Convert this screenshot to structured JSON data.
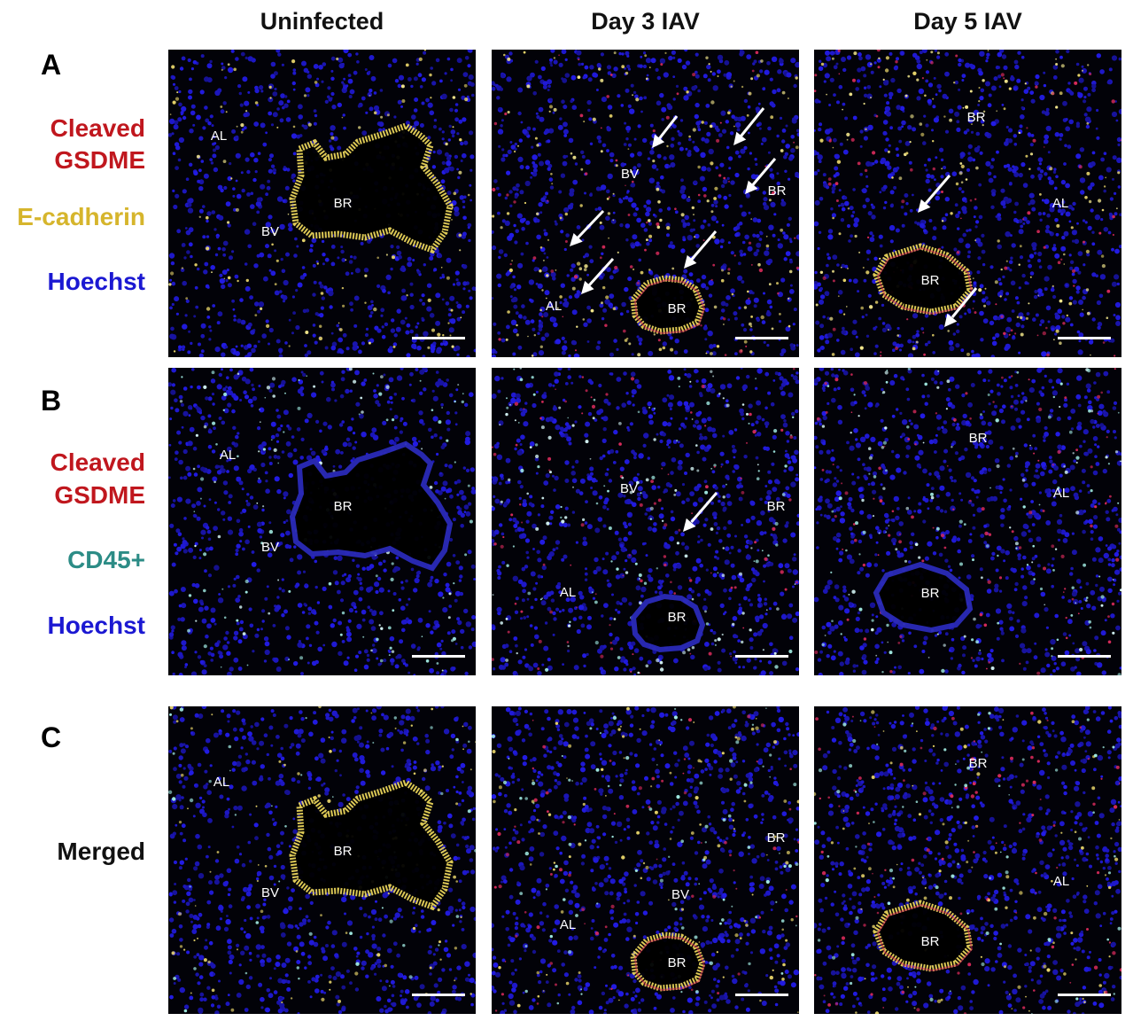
{
  "columns": [
    "Uninfected",
    "Day 3 IAV",
    "Day 5 IAV"
  ],
  "panels": [
    {
      "letter": "A",
      "stains": [
        {
          "text": "Cleaved",
          "color": "#c0171e"
        },
        {
          "text": "GSDME",
          "color": "#c0171e"
        },
        {
          "text": "E-cadherin",
          "color": "#d6b52c"
        },
        {
          "text": "Hoechst",
          "color": "#1b18d2"
        }
      ],
      "images": [
        {
          "labels": [
            "AL",
            "BR",
            "BV"
          ]
        },
        {
          "labels": [
            "BV",
            "BR",
            "AL",
            "BR"
          ]
        },
        {
          "labels": [
            "BR",
            "AL",
            "BR"
          ]
        }
      ]
    },
    {
      "letter": "B",
      "stains": [
        {
          "text": "Cleaved",
          "color": "#c0171e"
        },
        {
          "text": "GSDME",
          "color": "#c0171e"
        },
        {
          "text": "CD45+",
          "color": "#2c8c86"
        },
        {
          "text": "Hoechst",
          "color": "#1b18d2"
        }
      ],
      "images": [
        {
          "labels": [
            "AL",
            "BR",
            "BV"
          ]
        },
        {
          "labels": [
            "BV",
            "BR",
            "AL",
            "BR"
          ]
        },
        {
          "labels": [
            "BR",
            "AL",
            "BR"
          ]
        }
      ]
    },
    {
      "letter": "C",
      "stains": [
        {
          "text": "Merged",
          "color": "#111111"
        }
      ],
      "images": [
        {
          "labels": [
            "AL",
            "BR",
            "BV"
          ]
        },
        {
          "labels": [
            "BR",
            "BV",
            "AL",
            "BR"
          ]
        },
        {
          "labels": [
            "BR",
            "AL",
            "BR"
          ]
        }
      ]
    }
  ]
}
